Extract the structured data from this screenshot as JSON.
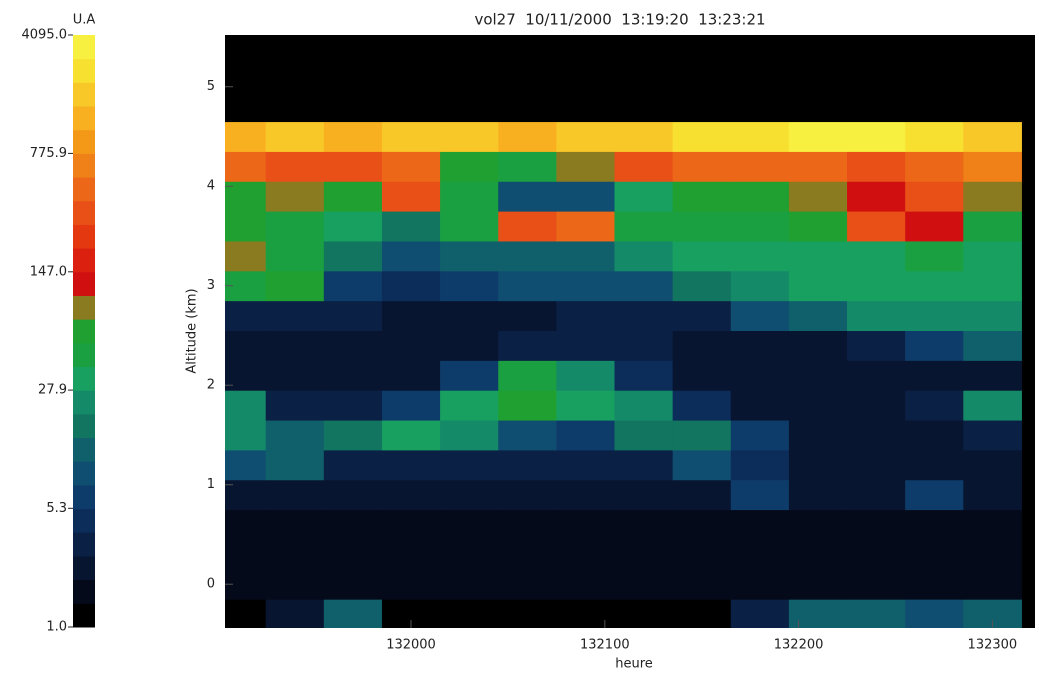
{
  "chart_data": {
    "type": "heatmap",
    "title": "vol27  10/11/2000  13:19:20  13:23:21",
    "x_label": "heure",
    "y_label": "Altitude (km)",
    "xlim": [
      131904,
      132322
    ],
    "ylim": [
      -0.44,
      5.52
    ],
    "xticks": [
      132000,
      132100,
      132200,
      132300
    ],
    "yticks": [
      0,
      1,
      2,
      3,
      4,
      5
    ],
    "x": [
      131910,
      131940,
      131970,
      132000,
      132030,
      132060,
      132090,
      132120,
      132150,
      132180,
      132210,
      132240,
      132270,
      132300
    ],
    "y": [
      -0.3,
      0,
      0.3,
      0.6,
      0.9,
      1.2,
      1.5,
      1.8,
      2.1,
      2.4,
      2.7,
      3.0,
      3.3,
      3.6,
      3.9,
      4.2,
      4.5,
      4.8,
      5.1,
      5.4
    ],
    "z": [
      [
        1,
        2,
        12,
        1,
        1,
        1,
        1,
        1,
        1,
        3,
        12,
        12,
        10,
        12
      ],
      [
        1.5,
        1.5,
        1.5,
        1.5,
        1.5,
        1.5,
        1.5,
        1.5,
        1.5,
        1.5,
        1.5,
        1.5,
        1.5,
        1.5
      ],
      [
        1.5,
        1.5,
        1.5,
        1.5,
        1.5,
        1.5,
        1.5,
        1.5,
        1.5,
        1.5,
        1.5,
        1.5,
        1.5,
        1.5
      ],
      [
        1.5,
        1.5,
        1.5,
        1.5,
        1.5,
        1.5,
        1.5,
        1.5,
        1.5,
        1.5,
        1.5,
        1.5,
        1.5,
        1.5
      ],
      [
        2,
        2,
        2,
        2,
        2,
        2,
        2,
        2,
        2,
        6,
        2,
        2,
        6,
        2
      ],
      [
        8,
        14,
        3,
        3,
        3,
        3,
        3,
        3,
        10,
        4,
        2,
        2,
        2,
        2
      ],
      [
        20,
        12,
        16,
        30,
        22,
        10,
        6,
        18,
        16,
        6,
        2,
        2,
        2,
        3
      ],
      [
        22,
        3,
        3,
        6,
        35,
        60,
        35,
        20,
        4,
        2,
        2,
        2,
        3,
        22
      ],
      [
        2,
        2,
        2,
        2,
        6,
        50,
        20,
        4,
        2,
        2,
        2,
        2,
        2,
        2
      ],
      [
        2,
        2,
        2,
        2,
        2,
        3,
        3,
        3,
        2,
        2,
        2,
        3,
        6,
        12
      ],
      [
        3,
        3,
        3,
        2,
        2,
        2,
        3,
        3,
        3,
        8,
        14,
        20,
        22,
        20
      ],
      [
        40,
        55,
        6,
        4,
        6,
        8,
        8,
        10,
        18,
        25,
        28,
        30,
        35,
        28
      ],
      [
        80,
        45,
        15,
        10,
        14,
        12,
        12,
        20,
        30,
        35,
        35,
        30,
        40,
        30
      ],
      [
        60,
        40,
        35,
        15,
        40,
        300,
        400,
        40,
        40,
        40,
        60,
        300,
        120,
        40
      ],
      [
        70,
        90,
        60,
        300,
        50,
        10,
        8,
        30,
        60,
        70,
        80,
        120,
        300,
        80
      ],
      [
        400,
        350,
        300,
        400,
        60,
        40,
        100,
        300,
        400,
        400,
        500,
        300,
        500,
        600
      ],
      [
        1500,
        1800,
        1500,
        2000,
        1800,
        1500,
        1600,
        1800,
        2500,
        2500,
        3000,
        3000,
        2500,
        2000
      ],
      [
        1,
        1,
        1,
        1,
        1,
        1,
        1,
        1,
        1,
        1,
        1,
        1,
        1,
        1
      ],
      [
        1,
        1,
        1,
        1,
        1,
        1,
        1,
        1,
        1,
        1,
        1,
        1,
        1,
        1
      ],
      [
        1,
        1,
        1,
        1,
        1,
        1,
        1,
        1,
        1,
        1,
        1,
        1,
        1,
        1
      ]
    ],
    "colorbar": {
      "label": "U.A",
      "scale": "log",
      "lim": [
        1,
        4095
      ],
      "ticks": [
        {
          "value": 4095,
          "label": "4095.0"
        },
        775.9,
        {
          "value": 147,
          "label": "147.0"
        },
        27.9,
        5.3,
        {
          "value": 1,
          "label": "1.0"
        }
      ],
      "colors": [
        "#000000",
        "#050a1a",
        "#081530",
        "#0a2045",
        "#0c2c5a",
        "#0e3c6a",
        "#0f4e70",
        "#10606c",
        "#127560",
        "#158a68",
        "#18a060",
        "#1aa040",
        "#20a030",
        "#8a7a20",
        "#d01010",
        "#dc2010",
        "#e43810",
        "#e85018",
        "#ec6818",
        "#f08018",
        "#f49818",
        "#f8b020",
        "#f8c828",
        "#f8e030",
        "#f8f040"
      ]
    }
  }
}
